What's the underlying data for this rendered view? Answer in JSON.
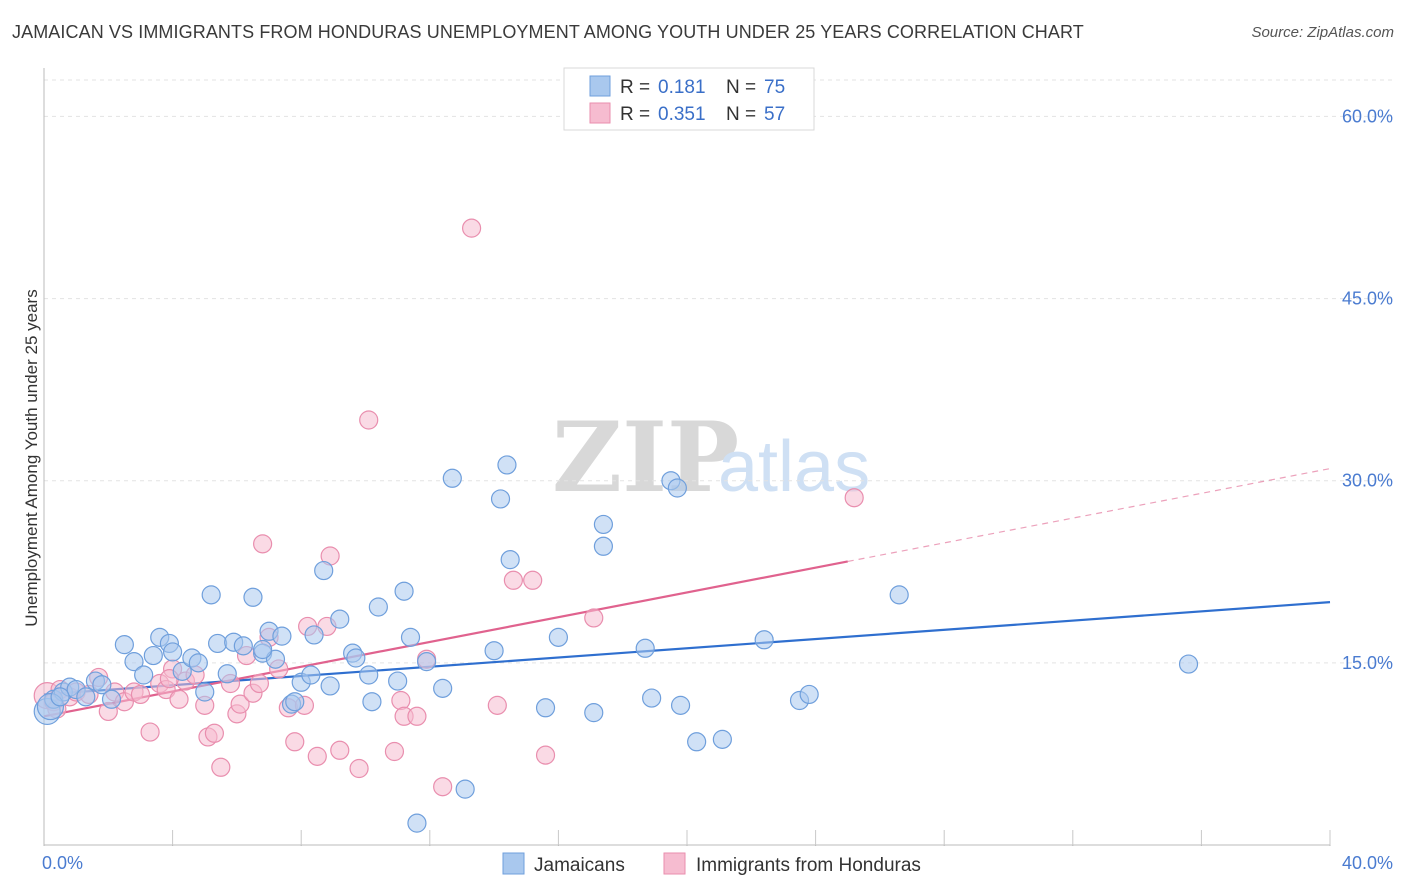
{
  "header": {
    "title": "JAMAICAN VS IMMIGRANTS FROM HONDURAS UNEMPLOYMENT AMONG YOUTH UNDER 25 YEARS CORRELATION CHART",
    "source": "Source: ZipAtlas.com"
  },
  "watermark": {
    "zip": "ZIP",
    "atlas": "atlas"
  },
  "legend": {
    "r_label": "R =",
    "n_label": "N =",
    "series": [
      {
        "r": "0.181",
        "n": "75"
      },
      {
        "r": "0.351",
        "n": "57"
      }
    ]
  },
  "bottom_legend": [
    "Jamaicans",
    "Immigrants from Honduras"
  ],
  "colors": {
    "blue_fill": "#a9c8ee",
    "blue_stroke": "#6f9fdc",
    "blue_line": "#2f6fcf",
    "pink_fill": "#f6bcd0",
    "pink_stroke": "#e98eae",
    "pink_line": "#e0628e",
    "grid": "#e3e3e3",
    "tick_text": "#4a7bd0"
  },
  "chart_data": {
    "type": "scatter",
    "title": "JAMAICAN VS IMMIGRANTS FROM HONDURAS UNEMPLOYMENT AMONG YOUTH UNDER 25 YEARS CORRELATION CHART",
    "xlabel": "",
    "ylabel": "Unemployment Among Youth under 25 years",
    "xlim": [
      0,
      40
    ],
    "ylim": [
      0,
      63
    ],
    "x_tick_labels": [
      "0.0%",
      "40.0%"
    ],
    "y_ticks": [
      15,
      30,
      45,
      60
    ],
    "y_tick_labels": [
      "15.0%",
      "30.0%",
      "45.0%",
      "60.0%"
    ],
    "grid": true,
    "legend_position": "top-center",
    "series": [
      {
        "name": "Jamaicans",
        "r": 0.181,
        "n": 75,
        "trend": {
          "x": [
            0,
            40
          ],
          "y": [
            12.4,
            20.0
          ],
          "dashed_from": null
        },
        "points": [
          [
            0.1,
            11.0
          ],
          [
            0.3,
            12.0
          ],
          [
            0.6,
            12.6
          ],
          [
            0.8,
            13.0
          ],
          [
            1.0,
            12.8
          ],
          [
            1.3,
            12.2
          ],
          [
            1.6,
            13.5
          ],
          [
            1.8,
            13.2
          ],
          [
            2.1,
            12.0
          ],
          [
            2.5,
            16.5
          ],
          [
            2.8,
            15.1
          ],
          [
            3.1,
            14.0
          ],
          [
            3.4,
            15.6
          ],
          [
            3.6,
            17.1
          ],
          [
            3.9,
            16.6
          ],
          [
            4.0,
            15.9
          ],
          [
            4.3,
            14.3
          ],
          [
            4.6,
            15.4
          ],
          [
            4.8,
            15.0
          ],
          [
            5.0,
            12.6
          ],
          [
            5.2,
            20.6
          ],
          [
            5.4,
            16.6
          ],
          [
            5.7,
            14.1
          ],
          [
            5.9,
            16.7
          ],
          [
            6.2,
            16.4
          ],
          [
            6.5,
            20.4
          ],
          [
            6.8,
            15.8
          ],
          [
            7.0,
            17.6
          ],
          [
            7.2,
            15.3
          ],
          [
            7.4,
            17.2
          ],
          [
            7.7,
            11.6
          ],
          [
            7.8,
            11.8
          ],
          [
            8.0,
            13.4
          ],
          [
            8.3,
            14.0
          ],
          [
            8.4,
            17.3
          ],
          [
            8.7,
            22.6
          ],
          [
            8.9,
            13.1
          ],
          [
            9.2,
            18.6
          ],
          [
            9.6,
            15.8
          ],
          [
            9.7,
            15.4
          ],
          [
            10.1,
            14.0
          ],
          [
            10.2,
            11.8
          ],
          [
            10.4,
            19.6
          ],
          [
            11.0,
            13.5
          ],
          [
            11.2,
            20.9
          ],
          [
            11.4,
            17.1
          ],
          [
            11.6,
            1.8
          ],
          [
            11.9,
            15.1
          ],
          [
            12.4,
            12.9
          ],
          [
            12.7,
            30.2
          ],
          [
            13.1,
            4.6
          ],
          [
            14.0,
            16.0
          ],
          [
            14.2,
            28.5
          ],
          [
            14.4,
            31.3
          ],
          [
            14.5,
            23.5
          ],
          [
            15.6,
            11.3
          ],
          [
            16.0,
            17.1
          ],
          [
            17.1,
            10.9
          ],
          [
            17.4,
            26.4
          ],
          [
            17.4,
            24.6
          ],
          [
            18.7,
            16.2
          ],
          [
            18.9,
            12.1
          ],
          [
            19.5,
            30.0
          ],
          [
            19.7,
            29.4
          ],
          [
            19.8,
            11.5
          ],
          [
            20.3,
            8.5
          ],
          [
            21.1,
            8.7
          ],
          [
            22.4,
            16.9
          ],
          [
            23.5,
            11.9
          ],
          [
            23.8,
            12.4
          ],
          [
            26.6,
            20.6
          ],
          [
            35.6,
            14.9
          ],
          [
            0.2,
            11.4
          ],
          [
            0.5,
            12.2
          ],
          [
            6.8,
            16.1
          ]
        ]
      },
      {
        "name": "Immigrants from Honduras",
        "r": 0.351,
        "n": 57,
        "trend": {
          "x": [
            0,
            40
          ],
          "y": [
            10.6,
            31.0
          ],
          "dashed_from": 25.0
        },
        "points": [
          [
            0.1,
            12.3
          ],
          [
            0.3,
            11.8
          ],
          [
            0.5,
            12.8
          ],
          [
            0.8,
            12.2
          ],
          [
            1.0,
            12.6
          ],
          [
            1.4,
            12.4
          ],
          [
            1.7,
            13.8
          ],
          [
            2.0,
            11.0
          ],
          [
            2.2,
            12.6
          ],
          [
            2.5,
            11.8
          ],
          [
            2.8,
            12.6
          ],
          [
            3.0,
            12.4
          ],
          [
            3.3,
            9.3
          ],
          [
            3.6,
            13.3
          ],
          [
            3.8,
            12.8
          ],
          [
            4.0,
            14.5
          ],
          [
            4.2,
            12.0
          ],
          [
            4.4,
            13.5
          ],
          [
            4.7,
            14.0
          ],
          [
            5.0,
            11.5
          ],
          [
            5.1,
            8.9
          ],
          [
            5.3,
            9.2
          ],
          [
            5.5,
            6.4
          ],
          [
            5.8,
            13.3
          ],
          [
            6.0,
            10.8
          ],
          [
            6.1,
            11.6
          ],
          [
            6.3,
            15.6
          ],
          [
            6.5,
            12.5
          ],
          [
            6.7,
            13.3
          ],
          [
            6.8,
            24.8
          ],
          [
            7.0,
            17.1
          ],
          [
            7.3,
            14.5
          ],
          [
            7.6,
            11.3
          ],
          [
            7.8,
            8.5
          ],
          [
            8.1,
            11.5
          ],
          [
            8.2,
            18.0
          ],
          [
            8.5,
            7.3
          ],
          [
            8.8,
            18.0
          ],
          [
            8.9,
            23.8
          ],
          [
            9.2,
            7.8
          ],
          [
            9.8,
            6.3
          ],
          [
            10.1,
            35.0
          ],
          [
            10.9,
            7.7
          ],
          [
            11.1,
            11.9
          ],
          [
            11.2,
            10.6
          ],
          [
            11.6,
            10.6
          ],
          [
            11.9,
            15.3
          ],
          [
            12.4,
            4.8
          ],
          [
            13.3,
            50.8
          ],
          [
            14.1,
            11.5
          ],
          [
            14.6,
            21.8
          ],
          [
            15.2,
            21.8
          ],
          [
            15.6,
            7.4
          ],
          [
            17.1,
            18.7
          ],
          [
            25.2,
            28.6
          ],
          [
            0.4,
            11.2
          ],
          [
            3.9,
            13.7
          ]
        ]
      }
    ]
  }
}
